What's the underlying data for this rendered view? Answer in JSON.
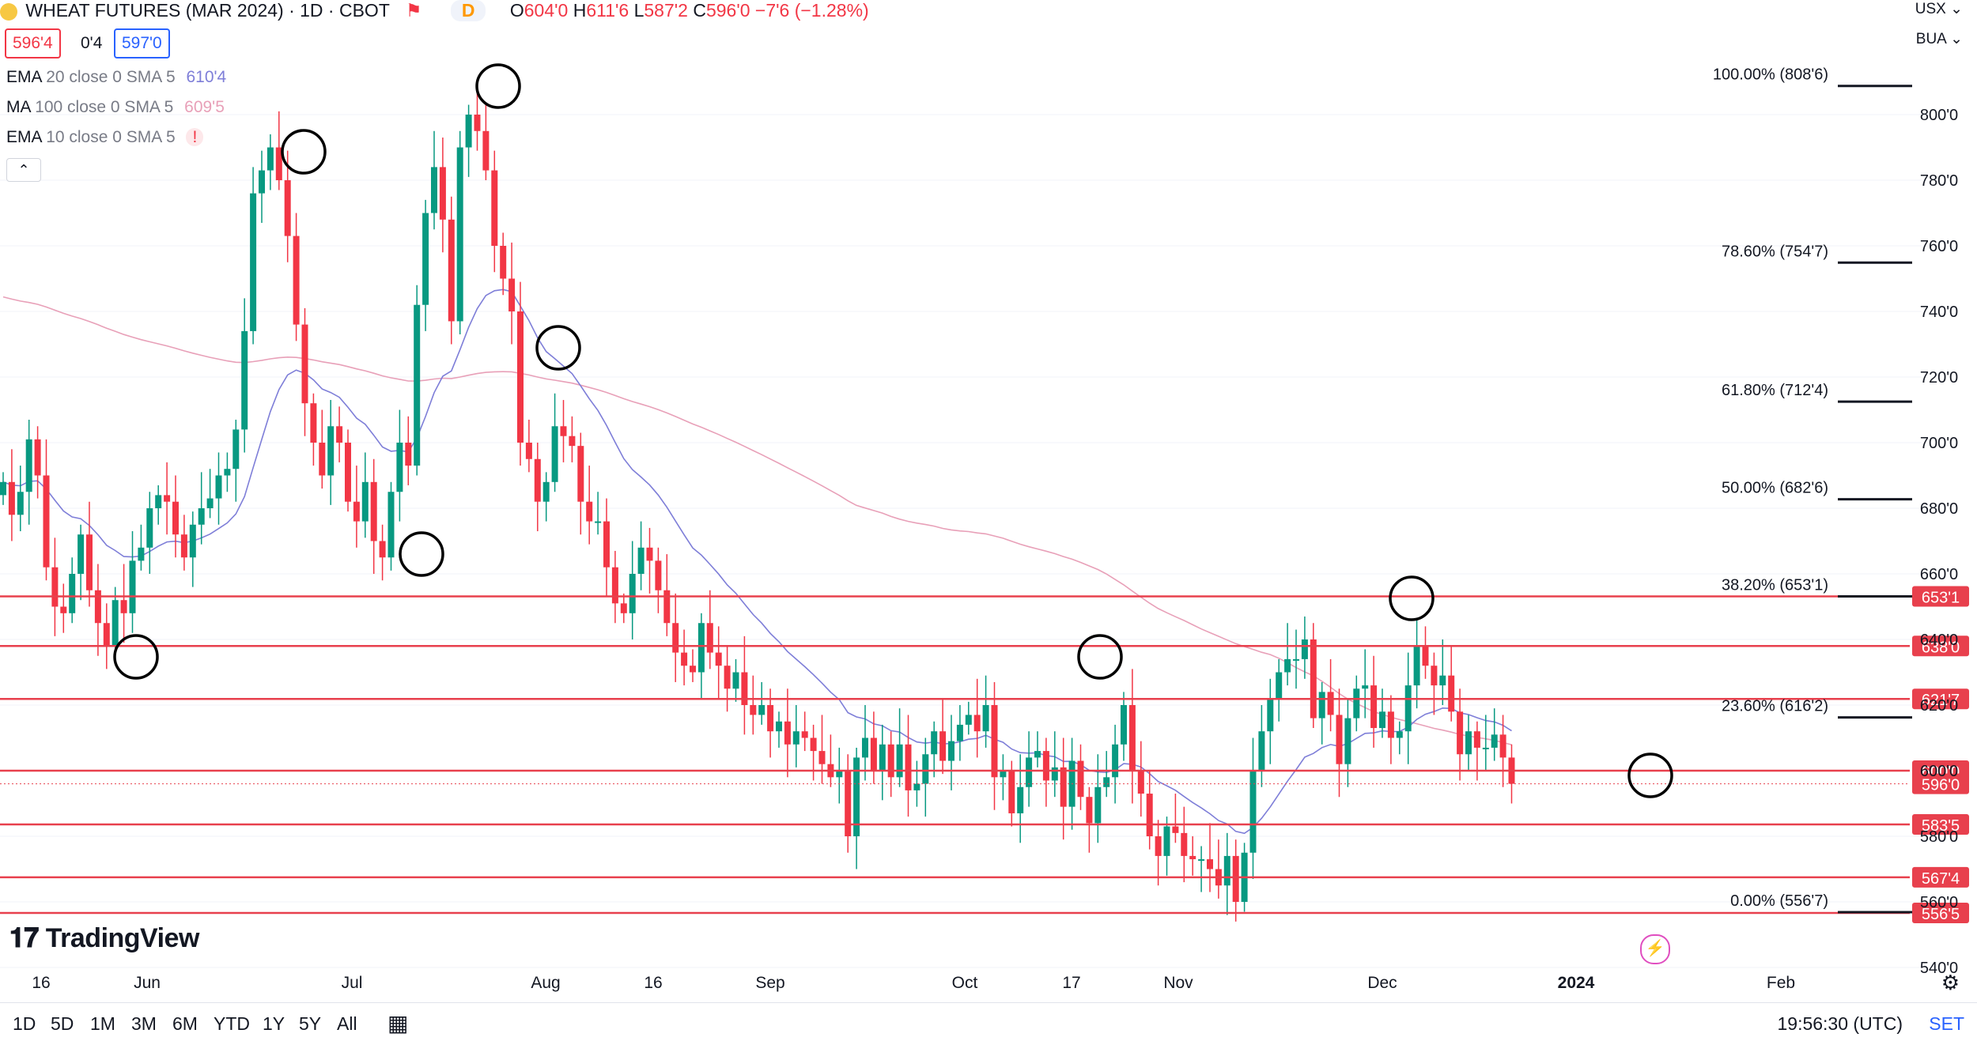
{
  "header": {
    "symbol_title": "WHEAT FUTURES (MAR 2024) · 1D · CBOT",
    "badge": "D",
    "ohlc": {
      "o_label": "O",
      "o": "604'0",
      "h_label": "H",
      "h": "611'6",
      "l_label": "L",
      "l": "587'2",
      "c_label": "C",
      "c": "596'0",
      "change": "−7'6 (−1.28%)"
    },
    "sell_price": "596'4",
    "spread": "0'4",
    "buy_price": "597'0",
    "currency": "USX",
    "unit": "BUA"
  },
  "indicators": [
    {
      "name": "EMA",
      "params": "20 close 0 SMA 5",
      "value": "610'4",
      "color": "#7e7ed8"
    },
    {
      "name": "MA",
      "params": "100 close 0 SMA 5",
      "value": "609'5",
      "color": "#e8a0b8"
    },
    {
      "name": "EMA",
      "params": "10 close 0 SMA 5",
      "value": "!",
      "color": "#f23645"
    }
  ],
  "chart_data": {
    "type": "candlestick",
    "title": "WHEAT FUTURES (MAR 2024) · 1D · CBOT",
    "yaxis_ticks": [
      "800'0",
      "780'0",
      "760'0",
      "740'0",
      "720'0",
      "700'0",
      "680'0",
      "660'0",
      "640'0",
      "620'0",
      "600'0",
      "580'0",
      "560'0",
      "540'0"
    ],
    "xaxis_ticks": [
      "16",
      "Jun",
      "Jul",
      "Aug",
      "16",
      "Sep",
      "Oct",
      "17",
      "Nov",
      "Dec",
      "2024",
      "Feb"
    ],
    "ylim": [
      535,
      815
    ],
    "fibonacci": [
      {
        "label": "100.00% (808'6)",
        "price": 808.75
      },
      {
        "label": "78.60% (754'7)",
        "price": 754.875
      },
      {
        "label": "61.80% (712'4)",
        "price": 712.5
      },
      {
        "label": "50.00% (682'6)",
        "price": 682.75
      },
      {
        "label": "38.20% (653'1)",
        "price": 653.125
      },
      {
        "label": "23.60% (616'2)",
        "price": 616.25
      },
      {
        "label": "0.00% (556'7)",
        "price": 556.875
      }
    ],
    "horizontal_levels": [
      {
        "label": "653'1",
        "price": 653.125
      },
      {
        "label": "638'0",
        "price": 638.0
      },
      {
        "label": "621'7",
        "price": 621.875
      },
      {
        "label": "600'0",
        "price": 600.0
      },
      {
        "label": "583'5",
        "price": 583.625
      },
      {
        "label": "567'4",
        "price": 567.5
      },
      {
        "label": "556'5",
        "price": 556.625
      }
    ],
    "last_price": {
      "label": "596'0",
      "price": 596.0
    },
    "series_closes": [
      688,
      678,
      685,
      701,
      690,
      662,
      650,
      648,
      660,
      672,
      655,
      645,
      638,
      652,
      648,
      664,
      668,
      680,
      684,
      682,
      672,
      665,
      675,
      680,
      683,
      690,
      692,
      704,
      734,
      776,
      783,
      790,
      780,
      763,
      736,
      712,
      700,
      690,
      705,
      700,
      682,
      676,
      688,
      670,
      665,
      685,
      700,
      693,
      742,
      770,
      784,
      768,
      737,
      790,
      800,
      795,
      783,
      760,
      750,
      740,
      700,
      695,
      682,
      688,
      705,
      702,
      699,
      682,
      676,
      676,
      662,
      651,
      648,
      660,
      668,
      664,
      655,
      645,
      636,
      632,
      630,
      645,
      636,
      632,
      625,
      630,
      620,
      617,
      620,
      612,
      615,
      608,
      612,
      610,
      606,
      602,
      598,
      600,
      580,
      604,
      610,
      600,
      608,
      598,
      608,
      594,
      596,
      605,
      612,
      603,
      609,
      614,
      617,
      612,
      620,
      598,
      600,
      587,
      595,
      604,
      606,
      597,
      601,
      589,
      603,
      592,
      584,
      595,
      598,
      608,
      620,
      600,
      593,
      580,
      574,
      583,
      581,
      574,
      573,
      573,
      570,
      565,
      574,
      560,
      575,
      600,
      612,
      622,
      630,
      634,
      634,
      640,
      616,
      624,
      617,
      602,
      616,
      625,
      626,
      613,
      618,
      610,
      612,
      626,
      638,
      632,
      626,
      629,
      618,
      605,
      612,
      607,
      607,
      611,
      604,
      596
    ],
    "annotations": [
      "swing highs and lows marked with circles"
    ]
  },
  "toolbar": {
    "timeframes": [
      "1D",
      "5D",
      "1M",
      "3M",
      "6M",
      "YTD",
      "1Y",
      "5Y",
      "All"
    ],
    "clock": "19:56:30 (UTC)",
    "set_label": "SET",
    "logo": "TradingView"
  },
  "colors": {
    "up": "#089981",
    "down": "#f23645",
    "level": "#e8404d",
    "grid": "#f0f3fa",
    "ema20": "#7e7ed8",
    "ma100": "#e8a0b8"
  }
}
